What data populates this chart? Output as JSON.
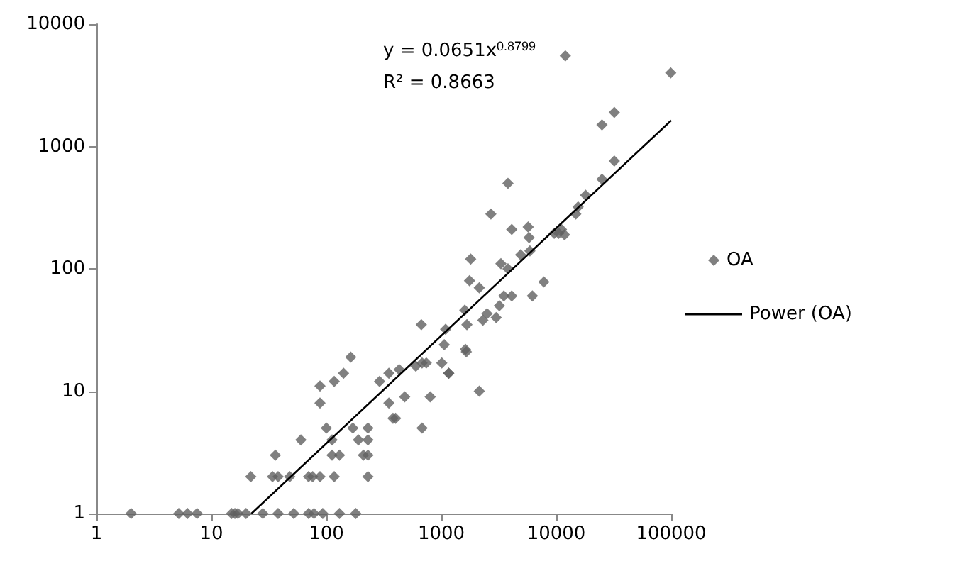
{
  "chart_data": {
    "type": "scatter",
    "log": "xy",
    "grid": false,
    "legend": "right",
    "marker": "diamond",
    "xlim": [
      1,
      100000
    ],
    "xticks": [
      1,
      10,
      100,
      1000,
      10000,
      100000
    ],
    "ylim": [
      1,
      10000
    ],
    "yticks": [
      1,
      10,
      100,
      1000,
      10000
    ],
    "annotations": [
      "y = 0.0651x$^{0.8799}$",
      "R² = 0.8663"
    ],
    "series": [
      {
        "name": "OA",
        "color": "#606060",
        "x": [
          2,
          5.2,
          6.2,
          7.5,
          15,
          16,
          17,
          20,
          28,
          38,
          52,
          70,
          78,
          93,
          130,
          180,
          22,
          34,
          38,
          48,
          70,
          76,
          88,
          117,
          230,
          36,
          112,
          130,
          210,
          230,
          60,
          112,
          190,
          230,
          100,
          170,
          230,
          680,
          400,
          380,
          88,
          350,
          88,
          117,
          290,
          141,
          350,
          1160,
          163,
          2140,
          480,
          800,
          3800,
          2700,
          4100,
          5700,
          5800,
          5900,
          4900,
          1800,
          3300,
          3800,
          1760,
          2140,
          3500,
          4100,
          6200,
          1600,
          2500,
          3200,
          2300,
          3000,
          1670,
          670,
          1090,
          1060,
          1620,
          1650,
          680,
          740,
          600,
          1010,
          430,
          1160,
          12000,
          99000,
          32000,
          25000,
          32000,
          25000,
          18000,
          15500,
          14800,
          11100,
          10500,
          11800,
          9600,
          7800
        ],
        "values": [
          1,
          1,
          1,
          1,
          1,
          1,
          1,
          1,
          1,
          1,
          1,
          1,
          1,
          1,
          1,
          1,
          2,
          2,
          2,
          2,
          2,
          2,
          2,
          2,
          2,
          3,
          3,
          3,
          3,
          3,
          4,
          4,
          4,
          4,
          5,
          5,
          5,
          5,
          6,
          6,
          8,
          8,
          11,
          12,
          12,
          14,
          14,
          14,
          19,
          10,
          9,
          9,
          500,
          280,
          210,
          220,
          180,
          140,
          130,
          120,
          110,
          100,
          80,
          70,
          60,
          60,
          60,
          46,
          43,
          50,
          38,
          40,
          35,
          35,
          32,
          24,
          22,
          21,
          17,
          17,
          16,
          17,
          15,
          14,
          5500,
          4000,
          1900,
          1500,
          760,
          540,
          400,
          320,
          280,
          210,
          195,
          190,
          195,
          78
        ]
      },
      {
        "name": "Power (OA)",
        "type": "line",
        "color": "#000000",
        "marker": "none",
        "line_style": "solid",
        "x": [
          22.3,
          100000
        ],
        "values": [
          1,
          1633
        ]
      }
    ]
  }
}
